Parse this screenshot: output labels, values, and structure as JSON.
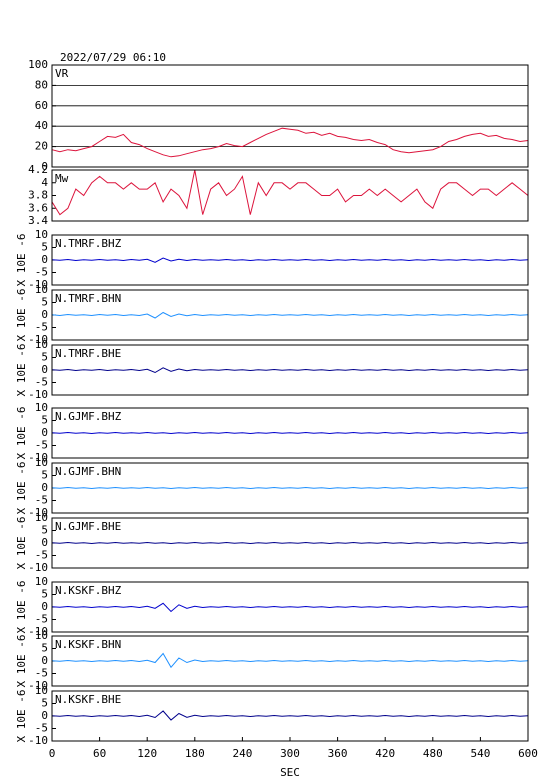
{
  "chart_data": {
    "type": "line",
    "title": "2022/07/29 06:10",
    "xlabel": "SEC",
    "ylabel": "X 10E -6",
    "xlim": [
      0,
      600
    ],
    "xticks": [
      0,
      60,
      120,
      180,
      240,
      300,
      360,
      420,
      480,
      540,
      600
    ],
    "x": [
      0,
      10,
      20,
      30,
      40,
      50,
      60,
      70,
      80,
      90,
      100,
      110,
      120,
      130,
      140,
      150,
      160,
      170,
      180,
      190,
      200,
      210,
      220,
      230,
      240,
      250,
      260,
      270,
      280,
      290,
      300,
      310,
      320,
      330,
      340,
      350,
      360,
      370,
      380,
      390,
      400,
      410,
      420,
      430,
      440,
      450,
      460,
      470,
      480,
      490,
      500,
      510,
      520,
      530,
      540,
      550,
      560,
      570,
      580,
      590,
      600
    ],
    "series": [
      {
        "name": "VR",
        "color": "#dc143c",
        "ylim": [
          0,
          100
        ],
        "yticks": [
          0,
          20,
          40,
          60,
          80,
          100
        ],
        "grid": true,
        "values": [
          17,
          15,
          17,
          16,
          18,
          20,
          25,
          30,
          29,
          32,
          24,
          22,
          18,
          15,
          12,
          10,
          11,
          13,
          15,
          17,
          18,
          20,
          23,
          21,
          20,
          24,
          28,
          32,
          35,
          38,
          37,
          36,
          33,
          34,
          31,
          33,
          30,
          29,
          27,
          26,
          27,
          24,
          22,
          17,
          15,
          14,
          15,
          16,
          17,
          20,
          25,
          27,
          30,
          32,
          33,
          30,
          31,
          28,
          27,
          25,
          26
        ]
      },
      {
        "name": "Mw",
        "color": "#dc143c",
        "ylim": [
          3.4,
          4.2
        ],
        "yticks": [
          3.4,
          3.6,
          3.8,
          4.0,
          4.2
        ],
        "grid": false,
        "values": [
          3.7,
          3.5,
          3.6,
          3.9,
          3.8,
          4.0,
          4.1,
          4.0,
          4.0,
          3.9,
          4.0,
          3.9,
          3.9,
          4.0,
          3.7,
          3.9,
          3.8,
          3.6,
          4.2,
          3.5,
          3.9,
          4.0,
          3.8,
          3.9,
          4.1,
          3.5,
          4.0,
          3.8,
          4.0,
          4.0,
          3.9,
          4.0,
          4.0,
          3.9,
          3.8,
          3.8,
          3.9,
          3.7,
          3.8,
          3.8,
          3.9,
          3.8,
          3.9,
          3.8,
          3.7,
          3.8,
          3.9,
          3.7,
          3.6,
          3.9,
          4.0,
          4.0,
          3.9,
          3.8,
          3.9,
          3.9,
          3.8,
          3.9,
          4.0,
          3.9,
          3.8
        ]
      },
      {
        "name": "N.TMRF.BHZ",
        "color": "#0000cd",
        "ylim": [
          -10,
          10
        ],
        "yticks": [
          -10,
          -5,
          0,
          5,
          10
        ],
        "grid": false,
        "values": [
          0.1,
          -0.1,
          0.2,
          -0.2,
          0.1,
          -0.1,
          0.2,
          -0.1,
          0.1,
          -0.2,
          0.2,
          -0.1,
          0.3,
          -0.9,
          0.8,
          -0.4,
          0.3,
          -0.2,
          0.2,
          -0.1,
          0.1,
          -0.1,
          0.2,
          -0.1,
          0.1,
          -0.2,
          0.1,
          -0.1,
          0.2,
          -0.1,
          0.1,
          -0.1,
          0.2,
          -0.1,
          0.1,
          -0.2,
          0.1,
          -0.1,
          0.2,
          -0.1,
          0.1,
          -0.1,
          0.2,
          -0.1,
          0.1,
          -0.2,
          0.1,
          -0.1,
          0.2,
          -0.1,
          0.1,
          -0.1,
          0.2,
          -0.1,
          0.1,
          -0.2,
          0.1,
          -0.1,
          0.2,
          -0.1,
          0.1
        ]
      },
      {
        "name": "N.TMRF.BHN",
        "color": "#1e90ff",
        "ylim": [
          -10,
          10
        ],
        "yticks": [
          -10,
          -5,
          0,
          5,
          10
        ],
        "grid": false,
        "values": [
          0.1,
          -0.2,
          0.2,
          -0.1,
          0.1,
          -0.2,
          0.2,
          -0.1,
          0.2,
          -0.2,
          0.1,
          -0.2,
          0.4,
          -1.2,
          1.0,
          -0.6,
          0.4,
          -0.3,
          0.2,
          -0.2,
          0.1,
          -0.1,
          0.2,
          -0.1,
          0.1,
          -0.2,
          0.1,
          -0.1,
          0.2,
          -0.1,
          0.1,
          -0.1,
          0.2,
          -0.1,
          0.1,
          -0.2,
          0.1,
          -0.1,
          0.2,
          -0.1,
          0.1,
          -0.1,
          0.2,
          -0.1,
          0.1,
          -0.2,
          0.1,
          -0.1,
          0.2,
          -0.1,
          0.1,
          -0.1,
          0.2,
          -0.1,
          0.1,
          -0.2,
          0.1,
          -0.1,
          0.2,
          -0.1,
          0.1
        ]
      },
      {
        "name": "N.TMRF.BHE",
        "color": "#00008b",
        "ylim": [
          -10,
          10
        ],
        "yticks": [
          -10,
          -5,
          0,
          5,
          10
        ],
        "grid": false,
        "values": [
          0.1,
          -0.1,
          0.2,
          -0.2,
          0.1,
          -0.1,
          0.2,
          -0.2,
          0.1,
          -0.1,
          0.2,
          -0.2,
          0.3,
          -1.0,
          0.9,
          -0.5,
          0.4,
          -0.3,
          0.2,
          -0.1,
          0.1,
          -0.1,
          0.2,
          -0.1,
          0.1,
          -0.2,
          0.1,
          -0.1,
          0.2,
          -0.1,
          0.1,
          -0.1,
          0.2,
          -0.1,
          0.1,
          -0.2,
          0.1,
          -0.1,
          0.2,
          -0.1,
          0.1,
          -0.1,
          0.2,
          -0.1,
          0.1,
          -0.2,
          0.1,
          -0.1,
          0.2,
          -0.1,
          0.1,
          -0.1,
          0.2,
          -0.1,
          0.1,
          -0.2,
          0.1,
          -0.1,
          0.2,
          -0.1,
          0.1
        ]
      },
      {
        "name": "N.GJMF.BHZ",
        "color": "#0000cd",
        "ylim": [
          -10,
          10
        ],
        "yticks": [
          -10,
          -5,
          0,
          5,
          10
        ],
        "grid": false,
        "values": [
          0.1,
          -0.1,
          0.2,
          -0.1,
          0.1,
          -0.2,
          0.1,
          -0.1,
          0.2,
          -0.1,
          0.1,
          -0.1,
          0.2,
          -0.1,
          0.1,
          -0.2,
          0.1,
          -0.1,
          0.2,
          -0.1,
          0.1,
          -0.1,
          0.2,
          -0.1,
          0.1,
          -0.2,
          0.1,
          -0.1,
          0.2,
          -0.1,
          0.1,
          -0.1,
          0.2,
          -0.1,
          0.1,
          -0.2,
          0.1,
          -0.1,
          0.2,
          -0.1,
          0.1,
          -0.1,
          0.2,
          -0.1,
          0.1,
          -0.2,
          0.1,
          -0.1,
          0.2,
          -0.1,
          0.1,
          -0.1,
          0.2,
          -0.1,
          0.1,
          -0.2,
          0.1,
          -0.1,
          0.2,
          -0.1,
          0.1
        ]
      },
      {
        "name": "N.GJMF.BHN",
        "color": "#1e90ff",
        "ylim": [
          -10,
          10
        ],
        "yticks": [
          -10,
          -5,
          0,
          5,
          10
        ],
        "grid": false,
        "values": [
          0.1,
          -0.1,
          0.2,
          -0.1,
          0.1,
          -0.2,
          0.1,
          -0.1,
          0.2,
          -0.1,
          0.1,
          -0.1,
          0.2,
          -0.1,
          0.1,
          -0.2,
          0.1,
          -0.1,
          0.2,
          -0.1,
          0.1,
          -0.1,
          0.2,
          -0.1,
          0.1,
          -0.2,
          0.1,
          -0.1,
          0.2,
          -0.1,
          0.1,
          -0.1,
          0.2,
          -0.1,
          0.1,
          -0.2,
          0.1,
          -0.1,
          0.2,
          -0.1,
          0.1,
          -0.1,
          0.2,
          -0.1,
          0.1,
          -0.2,
          0.1,
          -0.1,
          0.2,
          -0.1,
          0.1,
          -0.1,
          0.2,
          -0.1,
          0.1,
          -0.2,
          0.1,
          -0.1,
          0.2,
          -0.1,
          0.1
        ]
      },
      {
        "name": "N.GJMF.BHE",
        "color": "#00008b",
        "ylim": [
          -10,
          10
        ],
        "yticks": [
          -10,
          -5,
          0,
          5,
          10
        ],
        "grid": false,
        "values": [
          0.1,
          -0.1,
          0.2,
          -0.1,
          0.1,
          -0.2,
          0.1,
          -0.1,
          0.2,
          -0.1,
          0.1,
          -0.1,
          0.2,
          -0.1,
          0.1,
          -0.2,
          0.1,
          -0.1,
          0.2,
          -0.1,
          0.1,
          -0.1,
          0.2,
          -0.1,
          0.1,
          -0.2,
          0.1,
          -0.1,
          0.2,
          -0.1,
          0.1,
          -0.1,
          0.2,
          -0.1,
          0.1,
          -0.2,
          0.1,
          -0.1,
          0.2,
          -0.1,
          0.1,
          -0.1,
          0.2,
          -0.1,
          0.1,
          -0.2,
          0.1,
          -0.1,
          0.2,
          -0.1,
          0.1,
          -0.1,
          0.2,
          -0.1,
          0.1,
          -0.2,
          0.1,
          -0.1,
          0.2,
          -0.1,
          0.1
        ]
      },
      {
        "name": "N.KSKF.BHZ",
        "color": "#0000cd",
        "ylim": [
          -10,
          10
        ],
        "yticks": [
          -10,
          -5,
          0,
          5,
          10
        ],
        "grid": false,
        "values": [
          0.1,
          -0.1,
          0.2,
          -0.1,
          0.1,
          -0.2,
          0.1,
          -0.1,
          0.2,
          -0.1,
          0.2,
          -0.2,
          0.3,
          -0.5,
          1.5,
          -1.8,
          0.9,
          -0.5,
          0.3,
          -0.2,
          0.1,
          -0.1,
          0.2,
          -0.1,
          0.1,
          -0.2,
          0.1,
          -0.1,
          0.2,
          -0.1,
          0.1,
          -0.1,
          0.2,
          -0.1,
          0.1,
          -0.2,
          0.1,
          -0.1,
          0.2,
          -0.1,
          0.1,
          -0.1,
          0.2,
          -0.1,
          0.1,
          -0.2,
          0.1,
          -0.1,
          0.2,
          -0.1,
          0.1,
          -0.1,
          0.2,
          -0.1,
          0.1,
          -0.2,
          0.1,
          -0.1,
          0.2,
          -0.1,
          0.1
        ]
      },
      {
        "name": "N.KSKF.BHN",
        "color": "#1e90ff",
        "ylim": [
          -10,
          10
        ],
        "yticks": [
          -10,
          -5,
          0,
          5,
          10
        ],
        "grid": false,
        "values": [
          0.1,
          -0.1,
          0.2,
          -0.1,
          0.1,
          -0.2,
          0.1,
          -0.1,
          0.2,
          -0.1,
          0.2,
          -0.2,
          0.3,
          -0.6,
          3.0,
          -2.5,
          1.2,
          -0.6,
          0.4,
          -0.2,
          0.1,
          -0.1,
          0.2,
          -0.1,
          0.1,
          -0.2,
          0.1,
          -0.1,
          0.2,
          -0.1,
          0.1,
          -0.1,
          0.2,
          -0.1,
          0.1,
          -0.2,
          0.1,
          -0.1,
          0.2,
          -0.1,
          0.1,
          -0.1,
          0.2,
          -0.1,
          0.1,
          -0.2,
          0.1,
          -0.1,
          0.2,
          -0.1,
          0.1,
          -0.1,
          0.2,
          -0.1,
          0.1,
          -0.2,
          0.1,
          -0.1,
          0.2,
          -0.1,
          0.1
        ]
      },
      {
        "name": "N.KSKF.BHE",
        "color": "#00008b",
        "ylim": [
          -10,
          10
        ],
        "yticks": [
          -10,
          -5,
          0,
          5,
          10
        ],
        "grid": false,
        "values": [
          0.1,
          -0.1,
          0.2,
          -0.1,
          0.1,
          -0.2,
          0.1,
          -0.1,
          0.2,
          -0.1,
          0.2,
          -0.2,
          0.3,
          -0.6,
          2.0,
          -1.6,
          1.0,
          -0.5,
          0.3,
          -0.2,
          0.1,
          -0.1,
          0.2,
          -0.1,
          0.1,
          -0.2,
          0.1,
          -0.1,
          0.2,
          -0.1,
          0.1,
          -0.1,
          0.2,
          -0.1,
          0.1,
          -0.2,
          0.1,
          -0.1,
          0.2,
          -0.1,
          0.1,
          -0.1,
          0.2,
          -0.1,
          0.1,
          -0.2,
          0.1,
          -0.1,
          0.2,
          -0.1,
          0.1,
          -0.1,
          0.2,
          -0.1,
          0.1,
          -0.2,
          0.1,
          -0.1,
          0.2,
          -0.1,
          0.1
        ]
      }
    ]
  }
}
